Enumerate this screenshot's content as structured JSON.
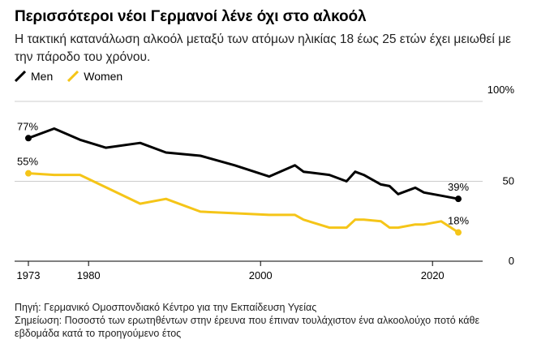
{
  "header": {
    "title": "Περισσότεροι νέοι Γερμανοί λένε όχι στο αλκοόλ",
    "subtitle": "Η τακτική κατανάλωση αλκοόλ μεταξύ των ατόμων ηλικίας 18 έως 25 ετών έχει μειωθεί με την πάροδο του χρόνου."
  },
  "footer": {
    "source": "Πηγή: Γερμανικό Ομοσπονδιακό Κέντρο για την Εκπαίδευση Υγείας",
    "note": "Σημείωση: Ποσοστό των ερωτηθέντων στην έρευνα που έπιναν τουλάχιστον ένα αλκοολούχο ποτό κάθε εβδομάδα κατά το προηγούμενο έτος"
  },
  "colors": {
    "men": "#000000",
    "women": "#f5c518",
    "grid": "#cccccc",
    "axis": "#000000"
  },
  "chart_data": {
    "type": "line",
    "xlim": [
      1973,
      2023
    ],
    "ylim": [
      0,
      100
    ],
    "x_ticks": [
      1973,
      1980,
      2000,
      2020
    ],
    "x_tick_labels": [
      "1973",
      "1980",
      "2000",
      "2020"
    ],
    "y_ticks": [
      0,
      50,
      100
    ],
    "y_tick_labels": [
      "0",
      "50",
      "100%"
    ],
    "grid": true,
    "legend_position": "top-left",
    "series": [
      {
        "name": "Men",
        "color": "#000000",
        "x": [
          1973,
          1976,
          1979,
          1982,
          1986,
          1989,
          1993,
          1997,
          2001,
          2004,
          2005,
          2008,
          2010,
          2011,
          2012,
          2014,
          2015,
          2016,
          2018,
          2019,
          2021,
          2023
        ],
        "y": [
          77,
          83,
          76,
          71,
          74,
          68,
          66,
          60,
          53,
          60,
          56,
          54,
          50,
          56,
          54,
          48,
          47,
          42,
          46,
          43,
          41,
          39
        ],
        "end_label": "39%",
        "start_label": "77%"
      },
      {
        "name": "Women",
        "color": "#f5c518",
        "x": [
          1973,
          1976,
          1979,
          1986,
          1989,
          1993,
          1997,
          2001,
          2004,
          2005,
          2008,
          2010,
          2011,
          2012,
          2014,
          2015,
          2016,
          2018,
          2019,
          2021,
          2023
        ],
        "y": [
          55,
          54,
          54,
          36,
          39,
          31,
          30,
          29,
          29,
          26,
          21,
          21,
          26,
          26,
          25,
          21,
          21,
          23,
          23,
          25,
          18
        ],
        "end_label": "18%",
        "start_label": "55%"
      }
    ]
  }
}
